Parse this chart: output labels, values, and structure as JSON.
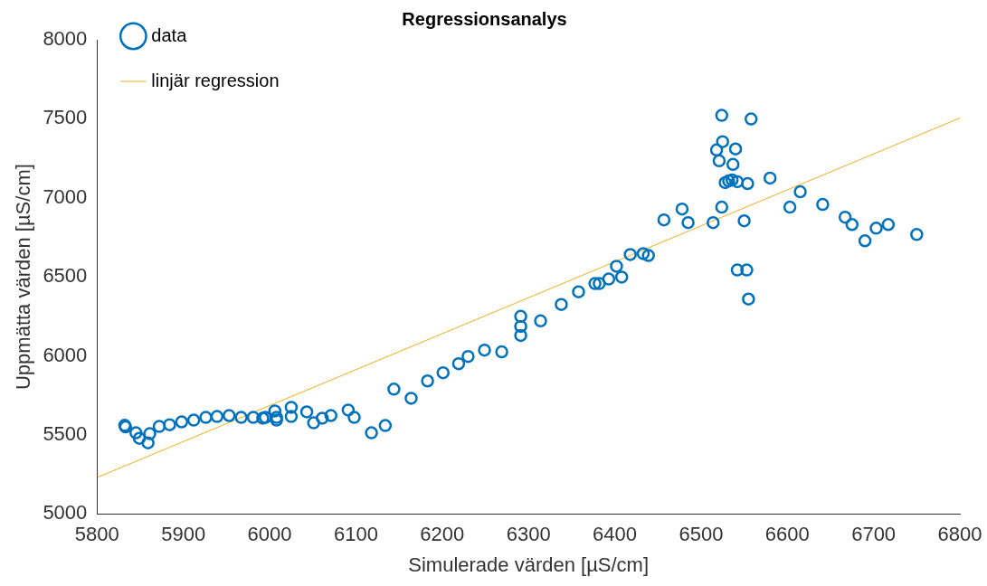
{
  "chart_data": {
    "type": "scatter",
    "title": "Regressionsanalys",
    "xlabel": "Simulerade värden [µS/cm]",
    "ylabel": "Uppmätta värden [µS/cm]",
    "xlim": [
      5800,
      6800
    ],
    "xticks": [
      5800,
      5900,
      6000,
      6100,
      6200,
      6300,
      6400,
      6500,
      6600,
      6700,
      6800
    ],
    "ylim": [
      5000,
      8000
    ],
    "yticks": [
      5000,
      5500,
      6000,
      6500,
      7000,
      7500,
      8000
    ],
    "grid": false,
    "legend": "top left",
    "marker": "circle",
    "series": [
      {
        "name": "data",
        "color": "#0072bd",
        "x": [
          5832,
          5833,
          5845,
          5849,
          5859,
          5861,
          5872,
          5884,
          5898,
          5912,
          5926,
          5939,
          5953,
          5967,
          5981,
          5992,
          5995,
          6006,
          6008,
          6008,
          6025,
          6025,
          6043,
          6051,
          6061,
          6071,
          6091,
          6098,
          6118,
          6134,
          6144,
          6164,
          6183,
          6201,
          6219,
          6230,
          6249,
          6269,
          6291,
          6291,
          6291,
          6314,
          6338,
          6358,
          6377,
          6382,
          6393,
          6402,
          6408,
          6418,
          6433,
          6439,
          6457,
          6478,
          6485,
          6524,
          6558,
          6525,
          6518,
          6540,
          6521,
          6537,
          6528,
          6532,
          6536,
          6542,
          6554,
          6580,
          6615,
          6603,
          6641,
          6524,
          6514,
          6550,
          6667,
          6675,
          6703,
          6717,
          6690,
          6750,
          6542,
          6553,
          6555
        ],
        "values": [
          5560,
          5550,
          5513,
          5478,
          5449,
          5507,
          5553,
          5564,
          5582,
          5593,
          5610,
          5616,
          5622,
          5610,
          5610,
          5605,
          5610,
          5651,
          5610,
          5593,
          5674,
          5616,
          5645,
          5576,
          5605,
          5622,
          5657,
          5610,
          5513,
          5559,
          5789,
          5731,
          5841,
          5893,
          5950,
          5996,
          6036,
          6025,
          6129,
          6186,
          6250,
          6221,
          6325,
          6405,
          6457,
          6457,
          6486,
          6567,
          6498,
          6641,
          6647,
          6635,
          6860,
          6929,
          6843,
          7522,
          7499,
          7355,
          7303,
          7309,
          7234,
          7211,
          7096,
          7107,
          7113,
          7102,
          7090,
          7125,
          7038,
          6941,
          6958,
          6941,
          6843,
          6854,
          6877,
          6831,
          6808,
          6831,
          6728,
          6768,
          6543,
          6543,
          6359
        ]
      },
      {
        "name": "linjär regression",
        "type": "line",
        "color": "#edb120",
        "marker": "none",
        "x": [
          5800,
          6800
        ],
        "values": [
          5230,
          7505
        ]
      }
    ]
  }
}
